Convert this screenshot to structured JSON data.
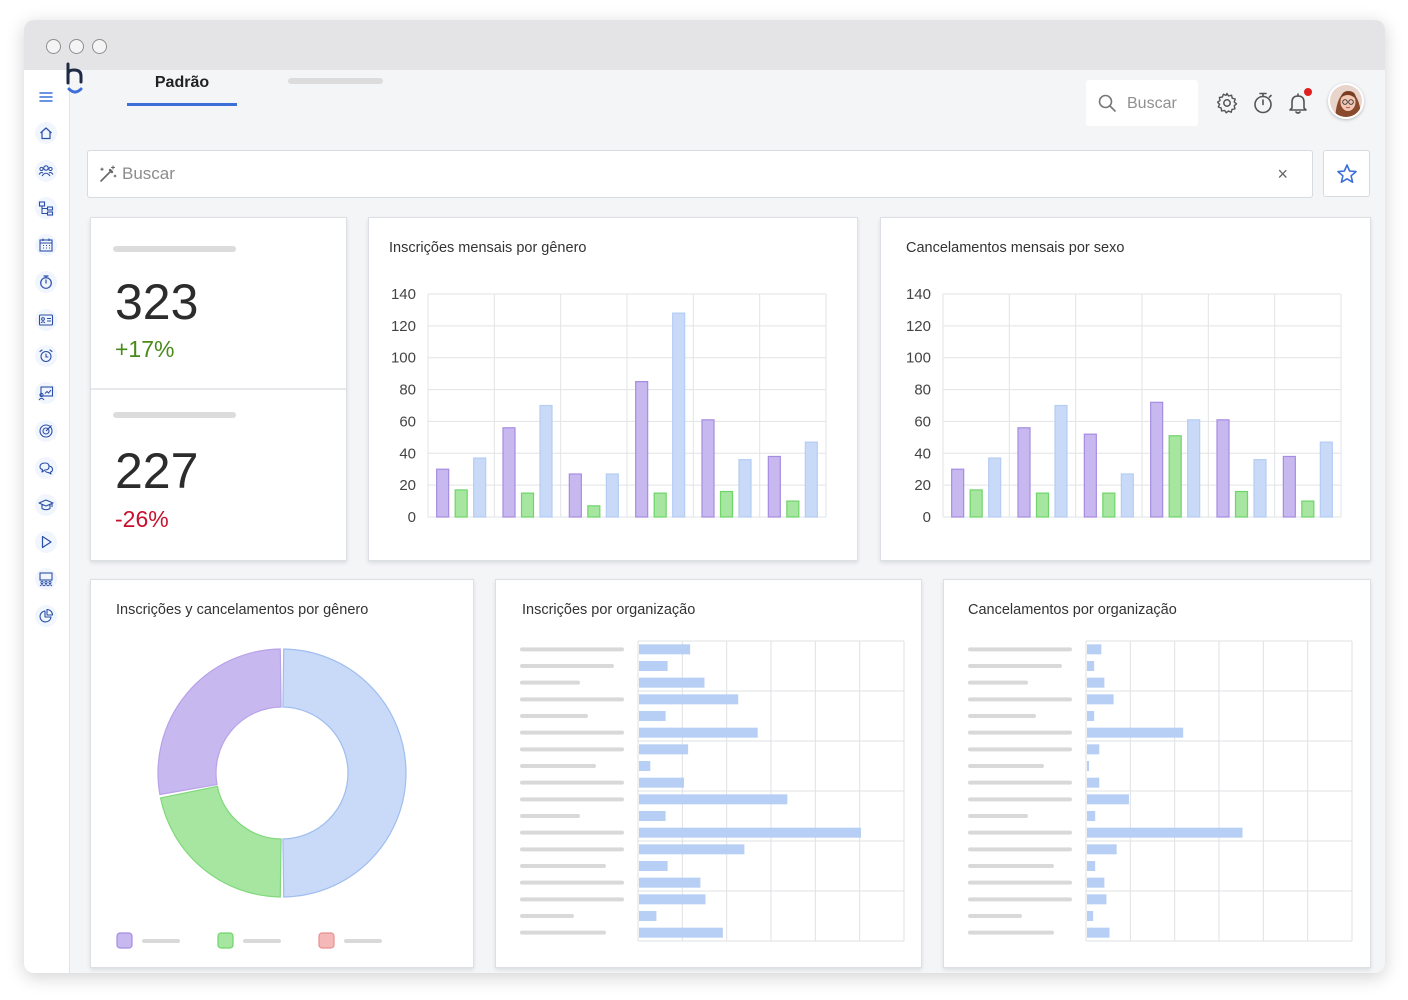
{
  "header": {
    "tab_label": "Padrão",
    "search_label": "Buscar"
  },
  "filter": {
    "placeholder": "Buscar",
    "clear_symbol": "×"
  },
  "icons": {
    "sidebar": [
      "menu-icon",
      "home-icon",
      "users-icon",
      "org-chart-icon",
      "calendar-icon",
      "stopwatch-icon",
      "id-card-icon",
      "alarm-icon",
      "presentation-icon",
      "target-icon",
      "chat-icon",
      "graduation-icon",
      "play-icon",
      "meeting-icon",
      "pie-chart-icon"
    ],
    "header": [
      "settings-icon",
      "timer-icon",
      "bell-icon"
    ]
  },
  "colors": {
    "accent": "#3c6fd8",
    "purple": "#c8b8f0",
    "green": "#a6e6a0",
    "blue": "#c8daf8",
    "red": "#f5b8b8",
    "positive": "#4a8a1a",
    "negative": "#c8102e"
  },
  "kpis": [
    {
      "value": "323",
      "delta": "+17%",
      "trend": "up"
    },
    {
      "value": "227",
      "delta": "-26%",
      "trend": "down"
    }
  ],
  "chart_data": [
    {
      "type": "bar",
      "title": "Inscrições mensais por gênero",
      "ylim": [
        0,
        140
      ],
      "yticks": [
        0,
        20,
        40,
        60,
        80,
        100,
        120,
        140
      ],
      "grid": true,
      "series": [
        {
          "values": [
            30,
            56,
            27,
            85,
            61,
            38
          ]
        },
        {
          "values": [
            17,
            15,
            7,
            15,
            16,
            10
          ]
        },
        {
          "values": [
            37,
            70,
            27,
            128,
            36,
            47
          ]
        }
      ]
    },
    {
      "type": "bar",
      "title": "Cancelamentos mensais por sexo",
      "ylim": [
        0,
        140
      ],
      "yticks": [
        0,
        20,
        40,
        60,
        80,
        100,
        120,
        140
      ],
      "grid": true,
      "series": [
        {
          "values": [
            30,
            56,
            52,
            72,
            61,
            38
          ]
        },
        {
          "values": [
            17,
            15,
            15,
            51,
            16,
            10
          ]
        },
        {
          "values": [
            37,
            70,
            27,
            61,
            36,
            47
          ]
        }
      ]
    },
    {
      "type": "pie",
      "title": "Inscrições y cancelamentos por gênero",
      "values": [
        50,
        22,
        28
      ],
      "legend_placement": "bottom"
    },
    {
      "type": "bar",
      "orientation": "horizontal",
      "title": "Inscrições por organização",
      "values": [
        50,
        28,
        64,
        97,
        26,
        116,
        48,
        11,
        44,
        145,
        26,
        217,
        103,
        28,
        60,
        65,
        17,
        82
      ],
      "xlim": [
        0,
        260
      ],
      "grid": true
    },
    {
      "type": "bar",
      "orientation": "horizontal",
      "title": "Cancelamentos por organização",
      "values": [
        14,
        7,
        17,
        26,
        7,
        94,
        12,
        2,
        12,
        41,
        8,
        152,
        29,
        8,
        17,
        19,
        6,
        22
      ],
      "xlim": [
        0,
        260
      ],
      "grid": true
    }
  ]
}
